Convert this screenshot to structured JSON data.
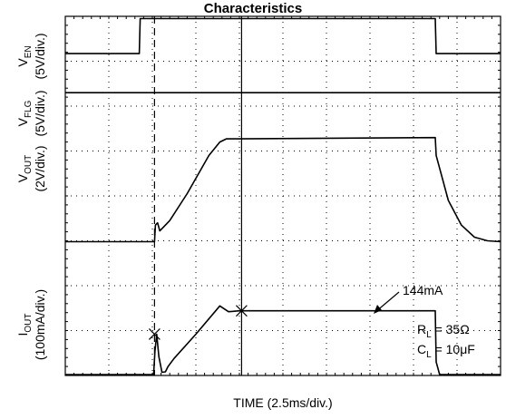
{
  "title": "Characteristics",
  "chart_data": {
    "type": "line",
    "xlabel": "TIME (2.5ms/div.)",
    "x_per_div_ms": 2.5,
    "divisions": {
      "x": 10,
      "y": 8
    },
    "grid": true,
    "channels": [
      {
        "label": "V",
        "sub": "EN",
        "scale": "(5V/div.)"
      },
      {
        "label": "V",
        "sub": "FLG",
        "scale": "(5V/div.)"
      },
      {
        "label": "V",
        "sub": "OUT",
        "scale": "(2V/div.)"
      },
      {
        "label": "I",
        "sub": "OUT",
        "scale": "(100mA/div.)"
      }
    ],
    "series": [
      {
        "name": "VEN",
        "x": [
          0,
          1.7,
          1.72,
          8.5,
          8.52,
          10
        ],
        "y": [
          7.17,
          7.17,
          7.95,
          7.95,
          7.17,
          7.17
        ]
      },
      {
        "name": "VFLG",
        "x": [
          0,
          10
        ],
        "y": [
          6.3,
          6.3
        ]
      },
      {
        "name": "VOUT",
        "x": [
          0,
          2.05,
          2.07,
          2.12,
          2.17,
          2.25,
          2.4,
          2.8,
          3.3,
          3.55,
          3.7,
          4.0,
          8.5,
          8.52,
          8.8,
          9.1,
          9.4,
          9.7,
          10
        ],
        "y": [
          2.98,
          2.98,
          3.35,
          3.4,
          3.22,
          3.3,
          3.45,
          4.05,
          4.9,
          5.2,
          5.27,
          5.27,
          5.3,
          4.9,
          3.9,
          3.35,
          3.08,
          3.0,
          2.98
        ]
      },
      {
        "name": "IOUT",
        "x": [
          0,
          2.03,
          2.06,
          2.1,
          2.15,
          2.22,
          2.3,
          2.36,
          2.5,
          3.0,
          3.55,
          3.75,
          4.0,
          8.5,
          8.52,
          8.6,
          10
        ],
        "y": [
          0.02,
          0.02,
          0.55,
          0.92,
          0.42,
          0.07,
          0.08,
          0.2,
          0.38,
          0.92,
          1.55,
          1.42,
          1.44,
          1.44,
          0.3,
          0.02,
          0.02
        ]
      }
    ],
    "cursors_div": [
      2.05,
      4.05
    ],
    "markers": [
      {
        "x": 2.05,
        "y": 0.92
      },
      {
        "x": 4.05,
        "y": 1.44
      }
    ],
    "annotations": {
      "iout_value": "144mA",
      "rl_label": "R",
      "rl_sub": "L",
      "rl_value": " = 35Ω",
      "cl_label": "C",
      "cl_sub": "L",
      "cl_value": " = 10μF"
    },
    "colors": {
      "trace": "#000000",
      "grid": "#000000"
    }
  }
}
